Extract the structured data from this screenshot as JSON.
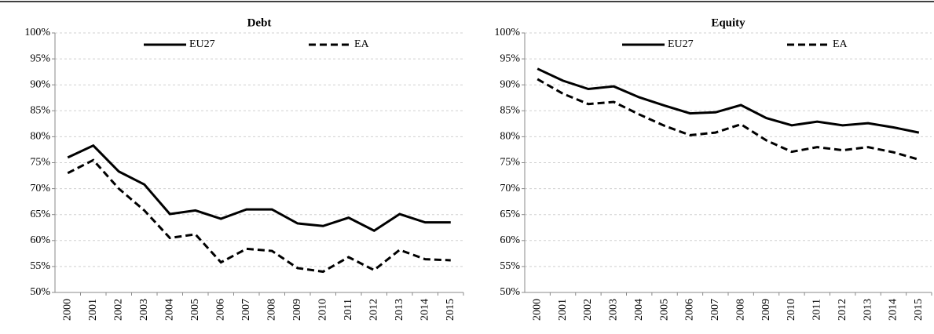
{
  "chart_data": [
    {
      "type": "line",
      "title": "Debt",
      "categories": [
        "2000",
        "2001",
        "2002",
        "2003",
        "2004",
        "2005",
        "2006",
        "2007",
        "2008",
        "2009",
        "2010",
        "2011",
        "2012",
        "2013",
        "2014",
        "2015"
      ],
      "series": [
        {
          "name": "EU27",
          "color": "#000000",
          "dash": false,
          "values": [
            76,
            78.3,
            73.3,
            70.8,
            65.1,
            65.8,
            64.2,
            66,
            66,
            63.3,
            62.8,
            64.4,
            61.9,
            65.1,
            63.5,
            63.5
          ]
        },
        {
          "name": "EA",
          "color": "#000000",
          "dash": true,
          "values": [
            73,
            75.5,
            70,
            65.8,
            60.5,
            61.2,
            55.8,
            58.4,
            58,
            54.7,
            54,
            56.8,
            54.3,
            58.2,
            56.4,
            56.2
          ]
        }
      ],
      "ylim": [
        50,
        100
      ],
      "yticks": [
        {
          "value": 50,
          "label": "50%"
        },
        {
          "value": 55,
          "label": "55%"
        },
        {
          "value": 60,
          "label": "60%"
        },
        {
          "value": 65,
          "label": "65%"
        },
        {
          "value": 70,
          "label": "70%"
        },
        {
          "value": 75,
          "label": "75%"
        },
        {
          "value": 80,
          "label": "80%"
        },
        {
          "value": 85,
          "label": "85%"
        },
        {
          "value": 90,
          "label": "90%"
        },
        {
          "value": 95,
          "label": "95%"
        },
        {
          "value": 100,
          "label": "100%"
        }
      ],
      "grid": true,
      "legend": "top"
    },
    {
      "type": "line",
      "title": "Equity",
      "categories": [
        "2000",
        "2001",
        "2002",
        "2003",
        "2004",
        "2005",
        "2006",
        "2007",
        "2008",
        "2009",
        "2010",
        "2011",
        "2012",
        "2013",
        "2014",
        "2015"
      ],
      "series": [
        {
          "name": "EU27",
          "color": "#000000",
          "dash": false,
          "values": [
            93.1,
            90.8,
            89.2,
            89.7,
            87.6,
            86,
            84.5,
            84.7,
            86.1,
            83.6,
            82.2,
            82.9,
            82.2,
            82.6,
            81.8,
            80.8
          ]
        },
        {
          "name": "EA",
          "color": "#000000",
          "dash": true,
          "values": [
            91.1,
            88.3,
            86.3,
            86.7,
            84.3,
            82.1,
            80.3,
            80.8,
            82.4,
            79.3,
            77.1,
            78,
            77.4,
            78,
            77,
            75.6
          ]
        }
      ],
      "ylim": [
        50,
        100
      ],
      "yticks": [
        {
          "value": 50,
          "label": "50%"
        },
        {
          "value": 55,
          "label": "55%"
        },
        {
          "value": 60,
          "label": "60%"
        },
        {
          "value": 65,
          "label": "65%"
        },
        {
          "value": 70,
          "label": "70%"
        },
        {
          "value": 75,
          "label": "75%"
        },
        {
          "value": 80,
          "label": "80%"
        },
        {
          "value": 85,
          "label": "85%"
        },
        {
          "value": 90,
          "label": "90%"
        },
        {
          "value": 95,
          "label": "95%"
        },
        {
          "value": 100,
          "label": "100%"
        }
      ],
      "grid": true,
      "legend": "top"
    }
  ]
}
